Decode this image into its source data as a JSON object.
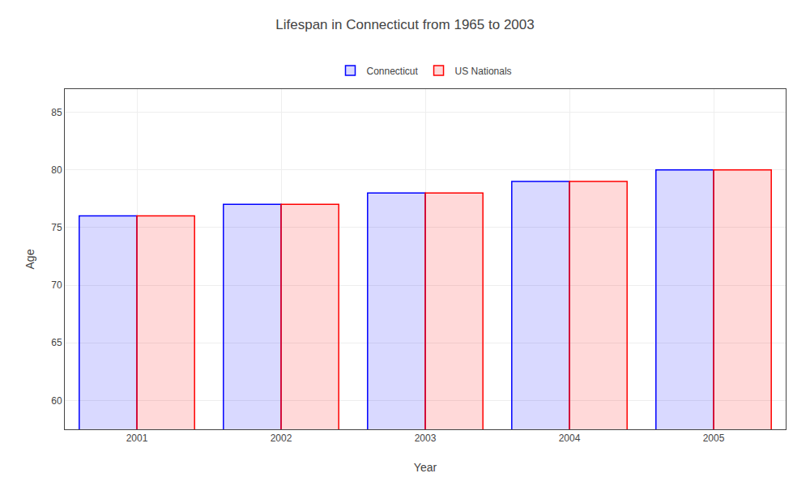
{
  "chart_data": {
    "type": "bar",
    "title": "Lifespan in Connecticut from 1965 to 2003",
    "categories": [
      "2001",
      "2002",
      "2003",
      "2004",
      "2005"
    ],
    "series": [
      {
        "name": "Connecticut",
        "color": "#0000ff",
        "values": [
          76,
          77,
          78,
          79,
          80
        ]
      },
      {
        "name": "US Nationals",
        "color": "#ff0000",
        "values": [
          76,
          77,
          78,
          79,
          80
        ]
      }
    ],
    "x_label": "Year",
    "y_label": "Age",
    "ylim": [
      57.5,
      87
    ],
    "yticks": [
      60,
      65,
      70,
      75,
      80,
      85
    ],
    "grid": true,
    "legend": "top"
  }
}
